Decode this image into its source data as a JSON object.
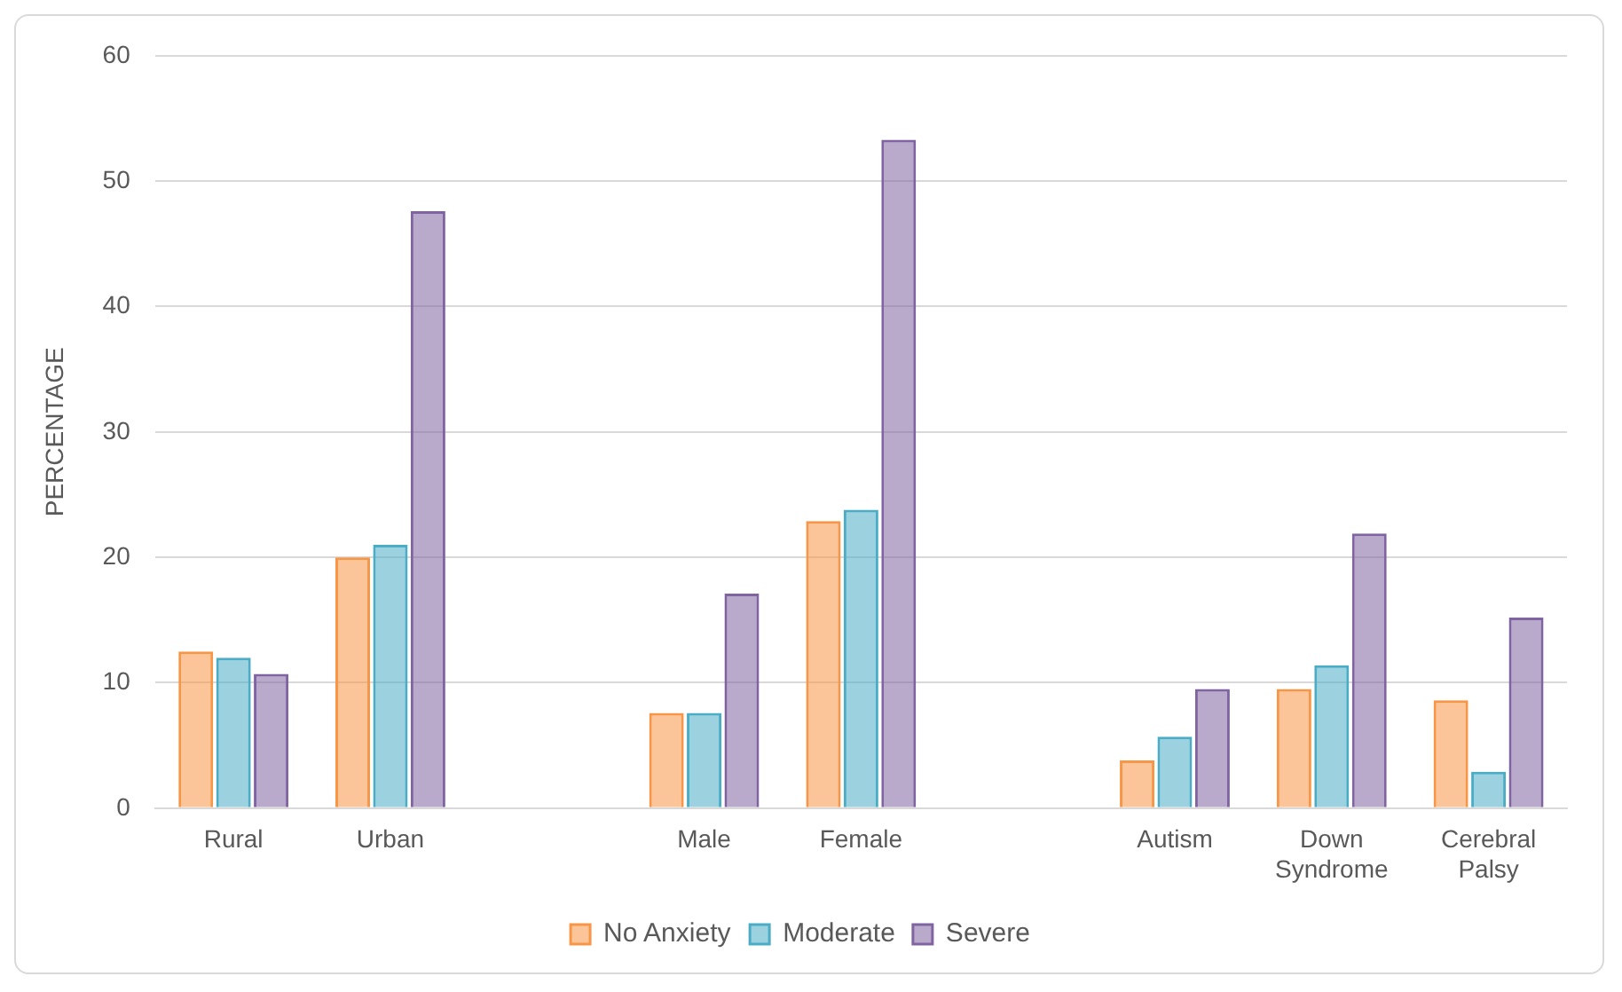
{
  "chart_data": {
    "type": "bar",
    "ylabel": "PERCENTAGE",
    "categories": [
      "Rural",
      "Urban",
      null,
      "Male",
      "Female",
      null,
      "Autism",
      "Down Syndrome",
      "Cerebral Palsy"
    ],
    "series": [
      {
        "name": "No Anxiety",
        "color": "#f79646",
        "values": [
          12.5,
          20.0,
          null,
          7.6,
          22.9,
          null,
          3.8,
          9.5,
          8.6
        ]
      },
      {
        "name": "Moderate",
        "color": "#4bacc6",
        "values": [
          12.0,
          21.0,
          null,
          7.6,
          23.8,
          null,
          5.7,
          11.4,
          2.9
        ]
      },
      {
        "name": "Severe",
        "color": "#8064a2",
        "values": [
          10.7,
          47.6,
          null,
          17.1,
          53.3,
          null,
          9.5,
          21.9,
          15.2
        ]
      }
    ],
    "ylim": [
      0,
      60
    ],
    "yticks": [
      0,
      10,
      20,
      30,
      40,
      50,
      60
    ],
    "grid": "y",
    "legend": "bottom"
  }
}
